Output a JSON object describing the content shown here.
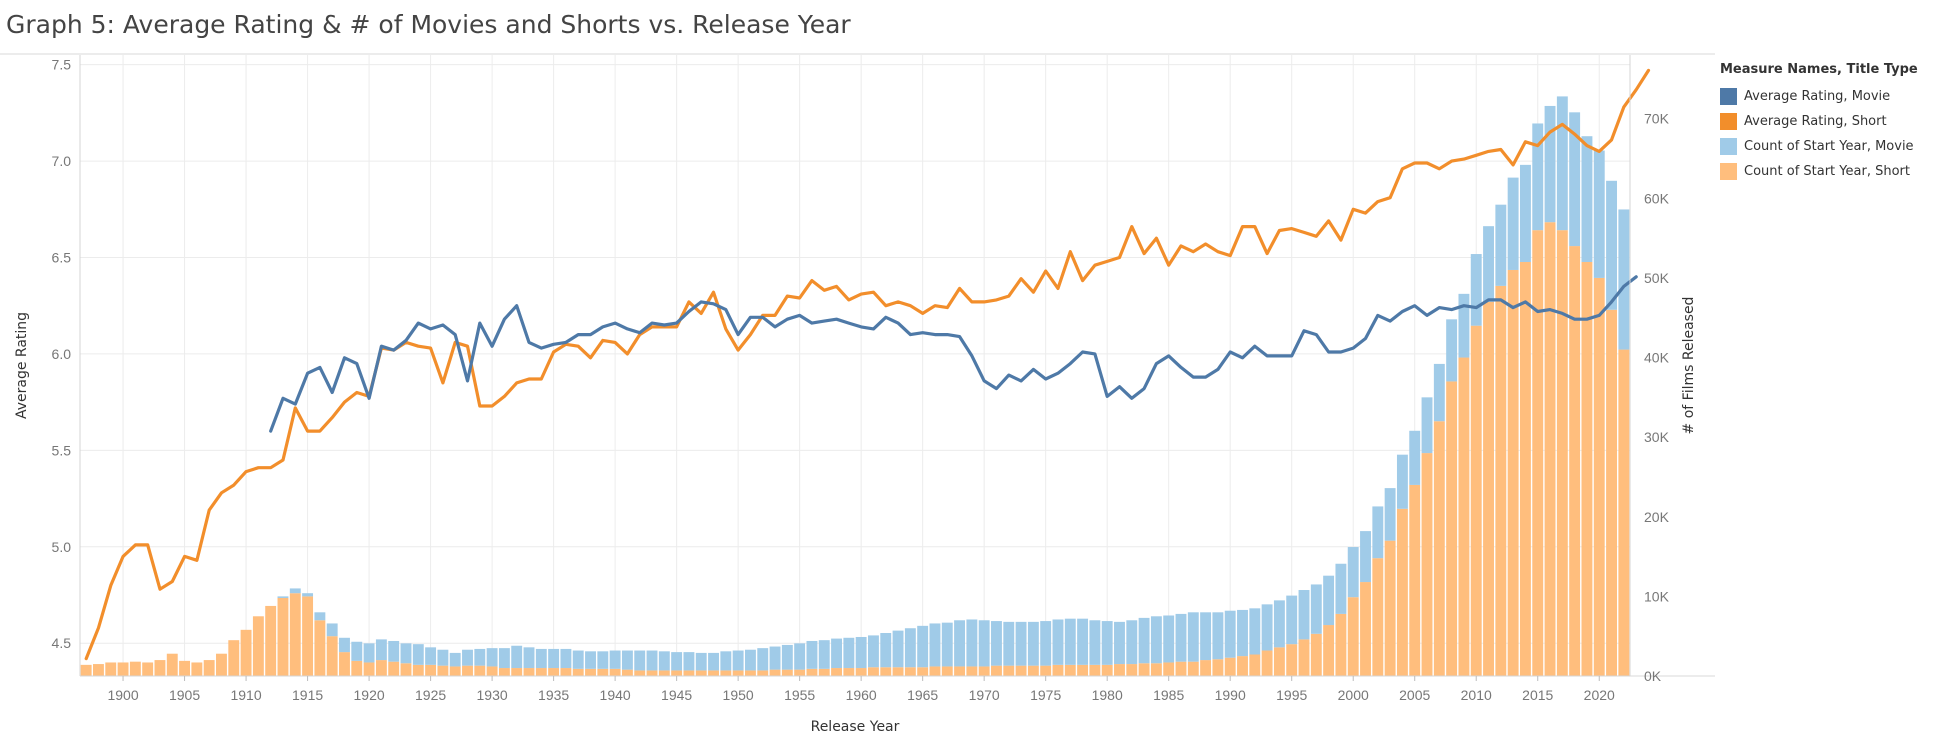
{
  "title": "Graph 5: Average Rating & # of Movies and Shorts vs. Release Year",
  "legend": {
    "title": "Measure Names, Title Type",
    "items": [
      {
        "label": "Average Rating, Movie",
        "color": "#4e79a7"
      },
      {
        "label": "Average Rating, Short",
        "color": "#f28e2b"
      },
      {
        "label": "Count of Start Year, Movie",
        "color": "#a0cbe8"
      },
      {
        "label": "Count of Start Year, Short",
        "color": "#ffbe7d"
      }
    ]
  },
  "chart_data": {
    "type": "bar+line",
    "xlabel": "Release Year",
    "ylabel_left": "Average Rating",
    "ylabel_right": "# of Films Released",
    "x_range": [
      1897,
      2022
    ],
    "x_ticks": [
      1900,
      1905,
      1910,
      1915,
      1920,
      1925,
      1930,
      1935,
      1940,
      1945,
      1950,
      1955,
      1960,
      1965,
      1970,
      1975,
      1980,
      1985,
      1990,
      1995,
      2000,
      2005,
      2010,
      2015,
      2020
    ],
    "ylim_left": [
      4.33,
      7.55
    ],
    "y_ticks_left": [
      "4.5",
      "5.0",
      "5.5",
      "6.0",
      "6.5",
      "7.0",
      "7.5"
    ],
    "ylim_right": [
      0,
      78000
    ],
    "y_ticks_right": [
      {
        "value": 0,
        "label": "0K"
      },
      {
        "value": 10000,
        "label": "10K"
      },
      {
        "value": 20000,
        "label": "20K"
      },
      {
        "value": 30000,
        "label": "30K"
      },
      {
        "value": 40000,
        "label": "40K"
      },
      {
        "value": 50000,
        "label": "50K"
      },
      {
        "value": 60000,
        "label": "60K"
      },
      {
        "value": 70000,
        "label": "70K"
      }
    ],
    "grid": true,
    "legend_position": "right",
    "bar_series": [
      {
        "name": "Count of Start Year, Short",
        "color": "#ffbe7d",
        "start_year": 1897,
        "values": [
          1400,
          1500,
          1700,
          1700,
          1800,
          1700,
          2000,
          2800,
          1900,
          1700,
          2000,
          2800,
          4500,
          5800,
          7500,
          8800,
          9800,
          10400,
          10000,
          7000,
          5000,
          3000,
          1900,
          1700,
          2000,
          1800,
          1600,
          1400,
          1400,
          1300,
          1200,
          1300,
          1300,
          1200,
          1000,
          1000,
          1000,
          1000,
          1000,
          1000,
          900,
          900,
          900,
          900,
          800,
          700,
          700,
          700,
          700,
          700,
          700,
          700,
          700,
          700,
          700,
          700,
          800,
          800,
          800,
          900,
          900,
          1000,
          1000,
          1000,
          1100,
          1100,
          1100,
          1100,
          1100,
          1200,
          1200,
          1200,
          1200,
          1200,
          1300,
          1300,
          1300,
          1300,
          1300,
          1400,
          1400,
          1400,
          1400,
          1400,
          1500,
          1500,
          1600,
          1600,
          1700,
          1800,
          1800,
          2000,
          2100,
          2300,
          2500,
          2700,
          3200,
          3600,
          4000,
          4600,
          5300,
          6400,
          7800,
          9900,
          11800,
          14800,
          17000,
          21000,
          24000,
          28000,
          32000,
          37000,
          40000,
          44000,
          47000,
          49000,
          51000,
          52000,
          56000,
          57000,
          56000,
          54000,
          52000,
          50000,
          46000,
          41000
        ]
      },
      {
        "name": "Count of Start Year, Movie",
        "color": "#a0cbe8",
        "start_year": 1897,
        "values": [
          0,
          0,
          0,
          0,
          0,
          0,
          0,
          0,
          0,
          0,
          0,
          0,
          0,
          0,
          0,
          0,
          200,
          600,
          400,
          1000,
          1600,
          1800,
          2400,
          2400,
          2600,
          2600,
          2500,
          2600,
          2200,
          2000,
          1700,
          2000,
          2100,
          2300,
          2500,
          2800,
          2600,
          2400,
          2400,
          2400,
          2300,
          2200,
          2200,
          2300,
          2400,
          2500,
          2500,
          2400,
          2300,
          2300,
          2200,
          2200,
          2400,
          2500,
          2600,
          2800,
          2900,
          3100,
          3300,
          3500,
          3600,
          3700,
          3800,
          3900,
          4000,
          4300,
          4600,
          4900,
          5200,
          5400,
          5500,
          5800,
          5900,
          5800,
          5600,
          5500,
          5500,
          5500,
          5600,
          5700,
          5800,
          5800,
          5600,
          5500,
          5300,
          5500,
          5700,
          5900,
          5900,
          6000,
          6200,
          6000,
          5900,
          5900,
          5800,
          5800,
          5800,
          5900,
          6100,
          6200,
          6200,
          6200,
          6300,
          6300,
          6400,
          6500,
          6600,
          6800,
          6800,
          7000,
          7200,
          7800,
          8000,
          9000,
          9500,
          10200,
          11600,
          12200,
          13400,
          14600,
          16800,
          16800,
          15800,
          16000,
          16200,
          17600
        ]
      }
    ],
    "line_series": [
      {
        "name": "Average Rating, Short",
        "color": "#f28e2b",
        "start_year": 1897,
        "values": [
          4.42,
          4.58,
          4.8,
          4.95,
          5.01,
          5.01,
          4.78,
          4.82,
          4.95,
          4.93,
          5.19,
          5.28,
          5.32,
          5.39,
          5.41,
          5.41,
          5.45,
          5.72,
          5.6,
          5.6,
          5.67,
          5.75,
          5.8,
          5.78,
          6.03,
          6.02,
          6.06,
          6.04,
          6.03,
          5.85,
          6.06,
          6.04,
          5.73,
          5.73,
          5.78,
          5.85,
          5.87,
          5.87,
          6.01,
          6.05,
          6.04,
          5.98,
          6.07,
          6.06,
          6.0,
          6.1,
          6.14,
          6.14,
          6.14,
          6.27,
          6.21,
          6.32,
          6.13,
          6.02,
          6.1,
          6.2,
          6.2,
          6.3,
          6.29,
          6.38,
          6.33,
          6.35,
          6.28,
          6.31,
          6.32,
          6.25,
          6.27,
          6.25,
          6.21,
          6.25,
          6.24,
          6.34,
          6.27,
          6.27,
          6.28,
          6.3,
          6.39,
          6.32,
          6.43,
          6.34,
          6.53,
          6.38,
          6.46,
          6.48,
          6.5,
          6.66,
          6.52,
          6.6,
          6.46,
          6.56,
          6.53,
          6.57,
          6.53,
          6.51,
          6.66,
          6.66,
          6.52,
          6.64,
          6.65,
          6.63,
          6.61,
          6.69,
          6.59,
          6.75,
          6.73,
          6.79,
          6.81,
          6.96,
          6.99,
          6.99,
          6.96,
          7.0,
          7.01,
          7.03,
          7.05,
          7.06,
          6.98,
          7.1,
          7.08,
          7.15,
          7.19,
          7.14,
          7.08,
          7.05,
          7.11,
          7.28,
          7.37,
          7.47
        ]
      },
      {
        "name": "Average Rating, Movie",
        "color": "#4e79a7",
        "start_year": 1912,
        "values": [
          5.6,
          5.77,
          5.74,
          5.9,
          5.93,
          5.8,
          5.98,
          5.95,
          5.77,
          6.04,
          6.02,
          6.07,
          6.16,
          6.13,
          6.15,
          6.1,
          5.86,
          6.16,
          6.04,
          6.18,
          6.25,
          6.06,
          6.03,
          6.05,
          6.06,
          6.1,
          6.1,
          6.14,
          6.16,
          6.13,
          6.11,
          6.16,
          6.15,
          6.16,
          6.22,
          6.27,
          6.26,
          6.23,
          6.1,
          6.19,
          6.19,
          6.14,
          6.18,
          6.2,
          6.16,
          6.17,
          6.18,
          6.16,
          6.14,
          6.13,
          6.19,
          6.16,
          6.1,
          6.11,
          6.1,
          6.1,
          6.09,
          5.99,
          5.86,
          5.82,
          5.89,
          5.86,
          5.92,
          5.87,
          5.9,
          5.95,
          6.01,
          6.0,
          5.78,
          5.83,
          5.77,
          5.82,
          5.95,
          5.99,
          5.93,
          5.88,
          5.88,
          5.92,
          6.01,
          5.98,
          6.04,
          5.99,
          5.99,
          5.99,
          6.12,
          6.1,
          6.01,
          6.01,
          6.03,
          6.08,
          6.2,
          6.17,
          6.22,
          6.25,
          6.2,
          6.24,
          6.23,
          6.25,
          6.24,
          6.28,
          6.28,
          6.24,
          6.27,
          6.22,
          6.23,
          6.21,
          6.18,
          6.18,
          6.2,
          6.27,
          6.35,
          6.4
        ]
      }
    ]
  }
}
